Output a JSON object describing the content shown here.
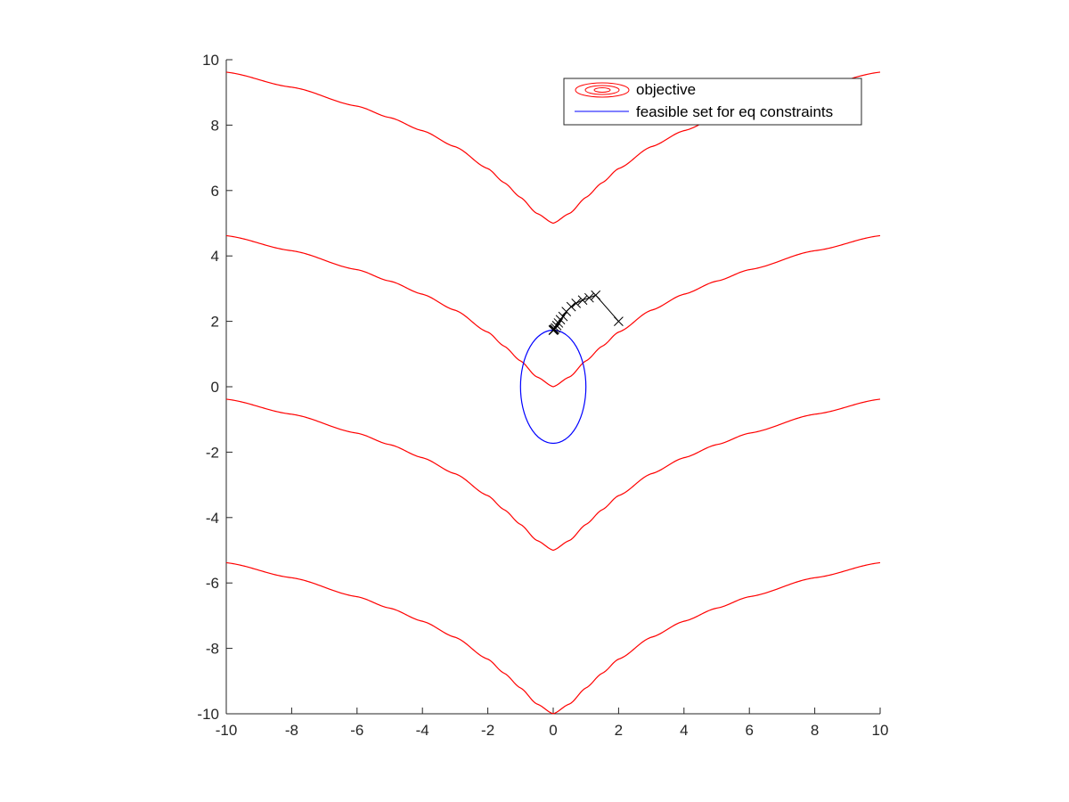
{
  "chart_data": {
    "type": "line",
    "title": "",
    "xlabel": "",
    "ylabel": "",
    "xlim": [
      -10,
      10
    ],
    "ylim": [
      -10,
      10
    ],
    "xticks": [
      "-10",
      "-8",
      "-6",
      "-4",
      "-2",
      "0",
      "2",
      "4",
      "6",
      "8",
      "10"
    ],
    "yticks": [
      "-10",
      "-8",
      "-6",
      "-4",
      "-2",
      "0",
      "2",
      "4",
      "6",
      "8",
      "10"
    ],
    "grid": false,
    "legend": {
      "placement": "top-right",
      "entries": [
        {
          "label": "objective",
          "color": "#ff0000",
          "marker": "contour"
        },
        {
          "label": "feasible set for eq constraints",
          "color": "#0000ff",
          "marker": "line"
        }
      ]
    },
    "objective_contours": {
      "color": "#ff0000",
      "levels": [
        5,
        0,
        -5,
        -10
      ],
      "x": [
        -10,
        -8,
        -6,
        -5,
        -4,
        -3,
        -2,
        -1.5,
        -1,
        -0.5,
        0,
        0.5,
        1,
        1.5,
        2,
        3,
        4,
        5,
        6,
        8,
        10
      ],
      "lift": [
        4.62,
        4.16,
        3.58,
        3.23,
        2.83,
        2.34,
        1.67,
        1.24,
        0.79,
        0.3,
        0,
        0.3,
        0.79,
        1.24,
        1.67,
        2.34,
        2.83,
        3.23,
        3.58,
        4.16,
        4.62
      ]
    },
    "feasible_set": {
      "color": "#0000ff",
      "shape": "ellipse",
      "center": [
        0,
        0
      ],
      "radius_x": 1.0,
      "radius_y": 1.73
    },
    "iterates": {
      "color": "#000000",
      "marker": "x",
      "points": [
        [
          2.0,
          2.0
        ],
        [
          1.3,
          2.8
        ],
        [
          1.1,
          2.72
        ],
        [
          0.9,
          2.65
        ],
        [
          0.7,
          2.55
        ],
        [
          0.55,
          2.45
        ],
        [
          0.4,
          2.3
        ],
        [
          0.3,
          2.15
        ],
        [
          0.22,
          2.05
        ],
        [
          0.16,
          1.95
        ],
        [
          0.11,
          1.87
        ],
        [
          0.07,
          1.8
        ],
        [
          0.04,
          1.76
        ],
        [
          0.02,
          1.74
        ],
        [
          0.01,
          1.73
        ],
        [
          0.0,
          1.73
        ]
      ]
    }
  }
}
